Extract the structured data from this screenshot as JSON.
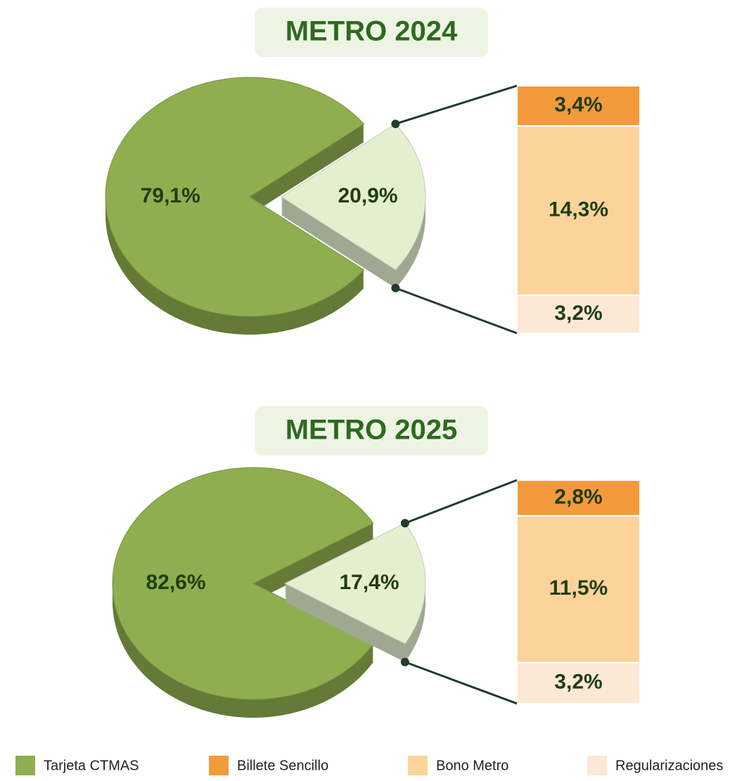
{
  "chart_data": [
    {
      "type": "pie",
      "title": "METRO 2024",
      "pie": {
        "values": [
          79.1,
          20.9
        ],
        "value_labels": [
          "79,1%",
          "20,9%"
        ],
        "colors": [
          "#8fae4f",
          "#e4efd0"
        ]
      },
      "bar": {
        "values": [
          3.4,
          14.3,
          3.2
        ],
        "value_labels": [
          "3,4%",
          "14,3%",
          "3,2%"
        ],
        "colors": [
          "#f39a3c",
          "#fbd39b",
          "#fde8d6"
        ]
      }
    },
    {
      "type": "pie",
      "title": "METRO 2025",
      "pie": {
        "values": [
          82.6,
          17.4
        ],
        "value_labels": [
          "82,6%",
          "17,4%"
        ],
        "colors": [
          "#8fae4f",
          "#e4efd0"
        ]
      },
      "bar": {
        "values": [
          2.8,
          11.5,
          3.2
        ],
        "value_labels": [
          "2,8%",
          "11,5%",
          "3,2%"
        ],
        "colors": [
          "#f39a3c",
          "#fbd39b",
          "#fde8d6"
        ]
      }
    }
  ],
  "legend": {
    "items": [
      {
        "name": "Tarjeta CTMAS",
        "color": "#8fae4f"
      },
      {
        "name": "Billete Sencillo",
        "color": "#f39a3c"
      },
      {
        "name": "Bono Metro",
        "color": "#fbd39b"
      },
      {
        "name": "Regularizaciones",
        "color": "#fde8d6"
      }
    ]
  }
}
